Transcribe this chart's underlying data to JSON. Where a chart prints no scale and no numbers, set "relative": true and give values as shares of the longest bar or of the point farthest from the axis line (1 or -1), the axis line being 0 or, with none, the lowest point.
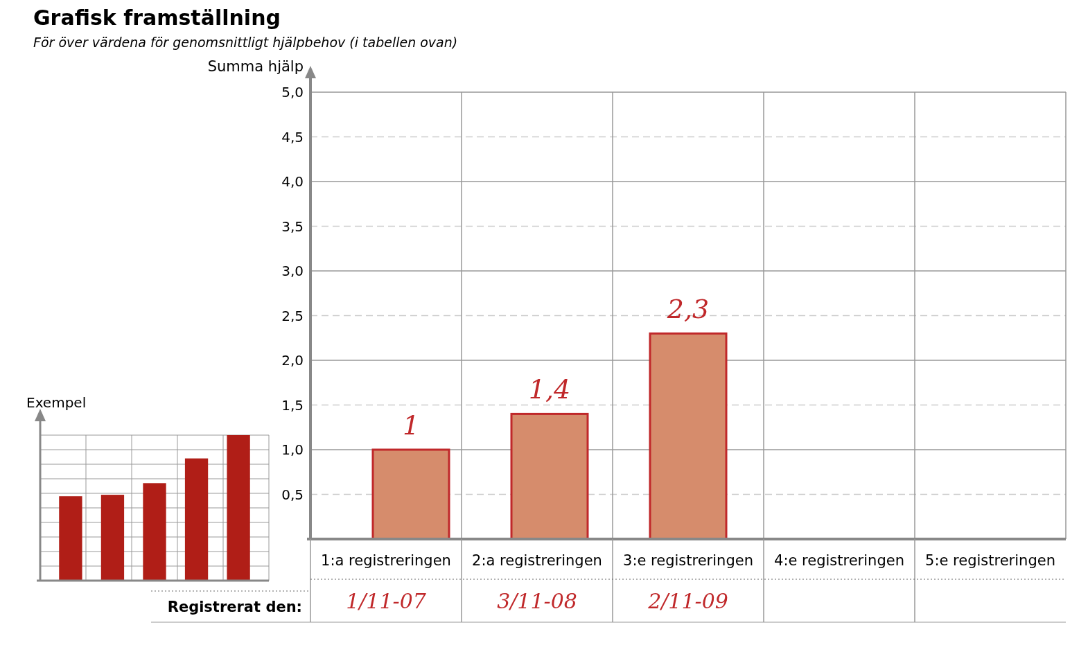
{
  "chart_data": [
    {
      "type": "bar",
      "title": "Grafisk framställning",
      "subtitle": "För över värdena för genomsnittligt hjälpbehov (i tabellen ovan)",
      "ylabel": "Summa hjälp",
      "categories": [
        "1:a registreringen",
        "2:a registreringen",
        "3:e registreringen",
        "4:e registreringen",
        "5:e registreringen"
      ],
      "values": [
        1,
        1.4,
        2.3,
        null,
        null
      ],
      "value_labels": [
        "1",
        "1,4",
        "2,3",
        null,
        null
      ],
      "color": "#d68c6c",
      "ylim": [
        0,
        5
      ],
      "yticks": [
        {
          "value": 0.5,
          "label": "0,5"
        },
        {
          "value": 1,
          "label": "1,0"
        },
        {
          "value": 1.5,
          "label": "1,5"
        },
        {
          "value": 2,
          "label": "2,0"
        },
        {
          "value": 2.5,
          "label": "2,5"
        },
        {
          "value": 3,
          "label": "3,0"
        },
        {
          "value": 3.5,
          "label": "3,5"
        },
        {
          "value": 4,
          "label": "4,0"
        },
        {
          "value": 4.5,
          "label": "4,5"
        },
        {
          "value": 5,
          "label": "5,0"
        }
      ],
      "grid": true,
      "annotations": [
        "Registrerat den:",
        "1/11-07",
        "3/11-08",
        "2/11-09"
      ]
    },
    {
      "type": "bar",
      "title": "Exempel",
      "relative": true,
      "categories": [
        null,
        null,
        null,
        null,
        null
      ],
      "values": [
        0.58,
        0.59,
        0.67,
        0.84,
        1
      ],
      "color": "#b01e17",
      "grid": true
    }
  ]
}
